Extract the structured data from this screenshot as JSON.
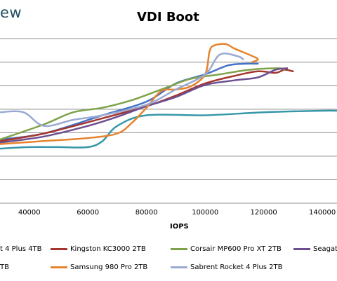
{
  "header": {
    "brand": "ew"
  },
  "chart_data": {
    "type": "line",
    "title": "VDI Boot",
    "xlabel": "IOPS",
    "ylabel": "",
    "xlim": [
      30000,
      145000
    ],
    "ylim": [
      0,
      11
    ],
    "x_ticks": [
      "40000",
      "60000",
      "80000",
      "100000",
      "120000",
      "140000"
    ],
    "grid": true,
    "legend_position": "bottom",
    "legend_labels": {
      "item_0": "t 4 Plus 4TB",
      "item_1": "Kingston KC3000 2TB",
      "item_2": "Corsair MP600 Pro XT 2TB",
      "item_3": "Seagat",
      "item_4": "TB",
      "item_5": "Samsung 980 Pro 2TB",
      "item_6": "Sabrent Rocket 4 Plus 2TB"
    },
    "series": [
      {
        "name": "t 4 Plus 4TB",
        "color": "#4472c4",
        "x": [
          30000,
          45000,
          65000,
          80000,
          90000,
          100000,
          108000,
          114000,
          118000
        ],
        "y": [
          4.2,
          4.6,
          5.8,
          6.7,
          7.9,
          8.5,
          9.1,
          9.2,
          9.2
        ]
      },
      {
        "name": "Kingston KC3000 2TB",
        "color": "#a5352f",
        "x": [
          30000,
          45000,
          65000,
          80000,
          90000,
          100000,
          110000,
          118000,
          124000,
          127000,
          130000
        ],
        "y": [
          4.1,
          4.6,
          5.6,
          6.4,
          7.1,
          7.9,
          8.4,
          8.7,
          8.6,
          8.8,
          8.7
        ]
      },
      {
        "name": "Corsair MP600 Pro XT 2TB",
        "color": "#7ea34a",
        "x": [
          30000,
          45000,
          55000,
          65000,
          75000,
          85000,
          95000,
          105000,
          115000,
          125000,
          127000
        ],
        "y": [
          4.2,
          5.2,
          6.0,
          6.3,
          6.8,
          7.5,
          8.2,
          8.5,
          8.8,
          8.9,
          8.8
        ]
      },
      {
        "name": "Seagat",
        "color": "#6b4f8f",
        "x": [
          30000,
          45000,
          60000,
          70000,
          80000,
          90000,
          100000,
          110000,
          118000,
          124000,
          128000
        ],
        "y": [
          4.0,
          4.4,
          5.1,
          5.7,
          6.4,
          7.0,
          7.8,
          8.1,
          8.3,
          8.8,
          8.9
        ]
      },
      {
        "name": "TB",
        "color": "#3797a8",
        "x": [
          30000,
          40000,
          50000,
          60000,
          65000,
          70000,
          80000,
          100000,
          120000,
          140000,
          145000
        ],
        "y": [
          3.6,
          3.7,
          3.7,
          3.7,
          4.1,
          5.1,
          5.8,
          5.8,
          6.0,
          6.1,
          6.1
        ]
      },
      {
        "name": "Samsung 980 Pro 2TB",
        "color": "#e5842e",
        "x": [
          30000,
          45000,
          60000,
          70000,
          75000,
          80000,
          85000,
          90000,
          95000,
          100000,
          101500,
          103000,
          107000,
          110000,
          115000,
          118000,
          116000
        ],
        "y": [
          3.9,
          4.1,
          4.3,
          4.6,
          5.3,
          6.3,
          7.4,
          7.5,
          7.7,
          8.5,
          10.0,
          10.4,
          10.5,
          10.2,
          9.8,
          9.5,
          9.3
        ]
      },
      {
        "name": "Sabrent Rocket 4 Plus 2TB",
        "color": "#9aa9d2",
        "x": [
          30000,
          38000,
          45000,
          55000,
          65000,
          80000,
          90000,
          100000,
          105000,
          111000,
          113000
        ],
        "y": [
          6.0,
          6.0,
          5.1,
          5.5,
          5.8,
          6.5,
          7.5,
          8.5,
          9.8,
          9.7,
          9.5
        ]
      }
    ]
  }
}
